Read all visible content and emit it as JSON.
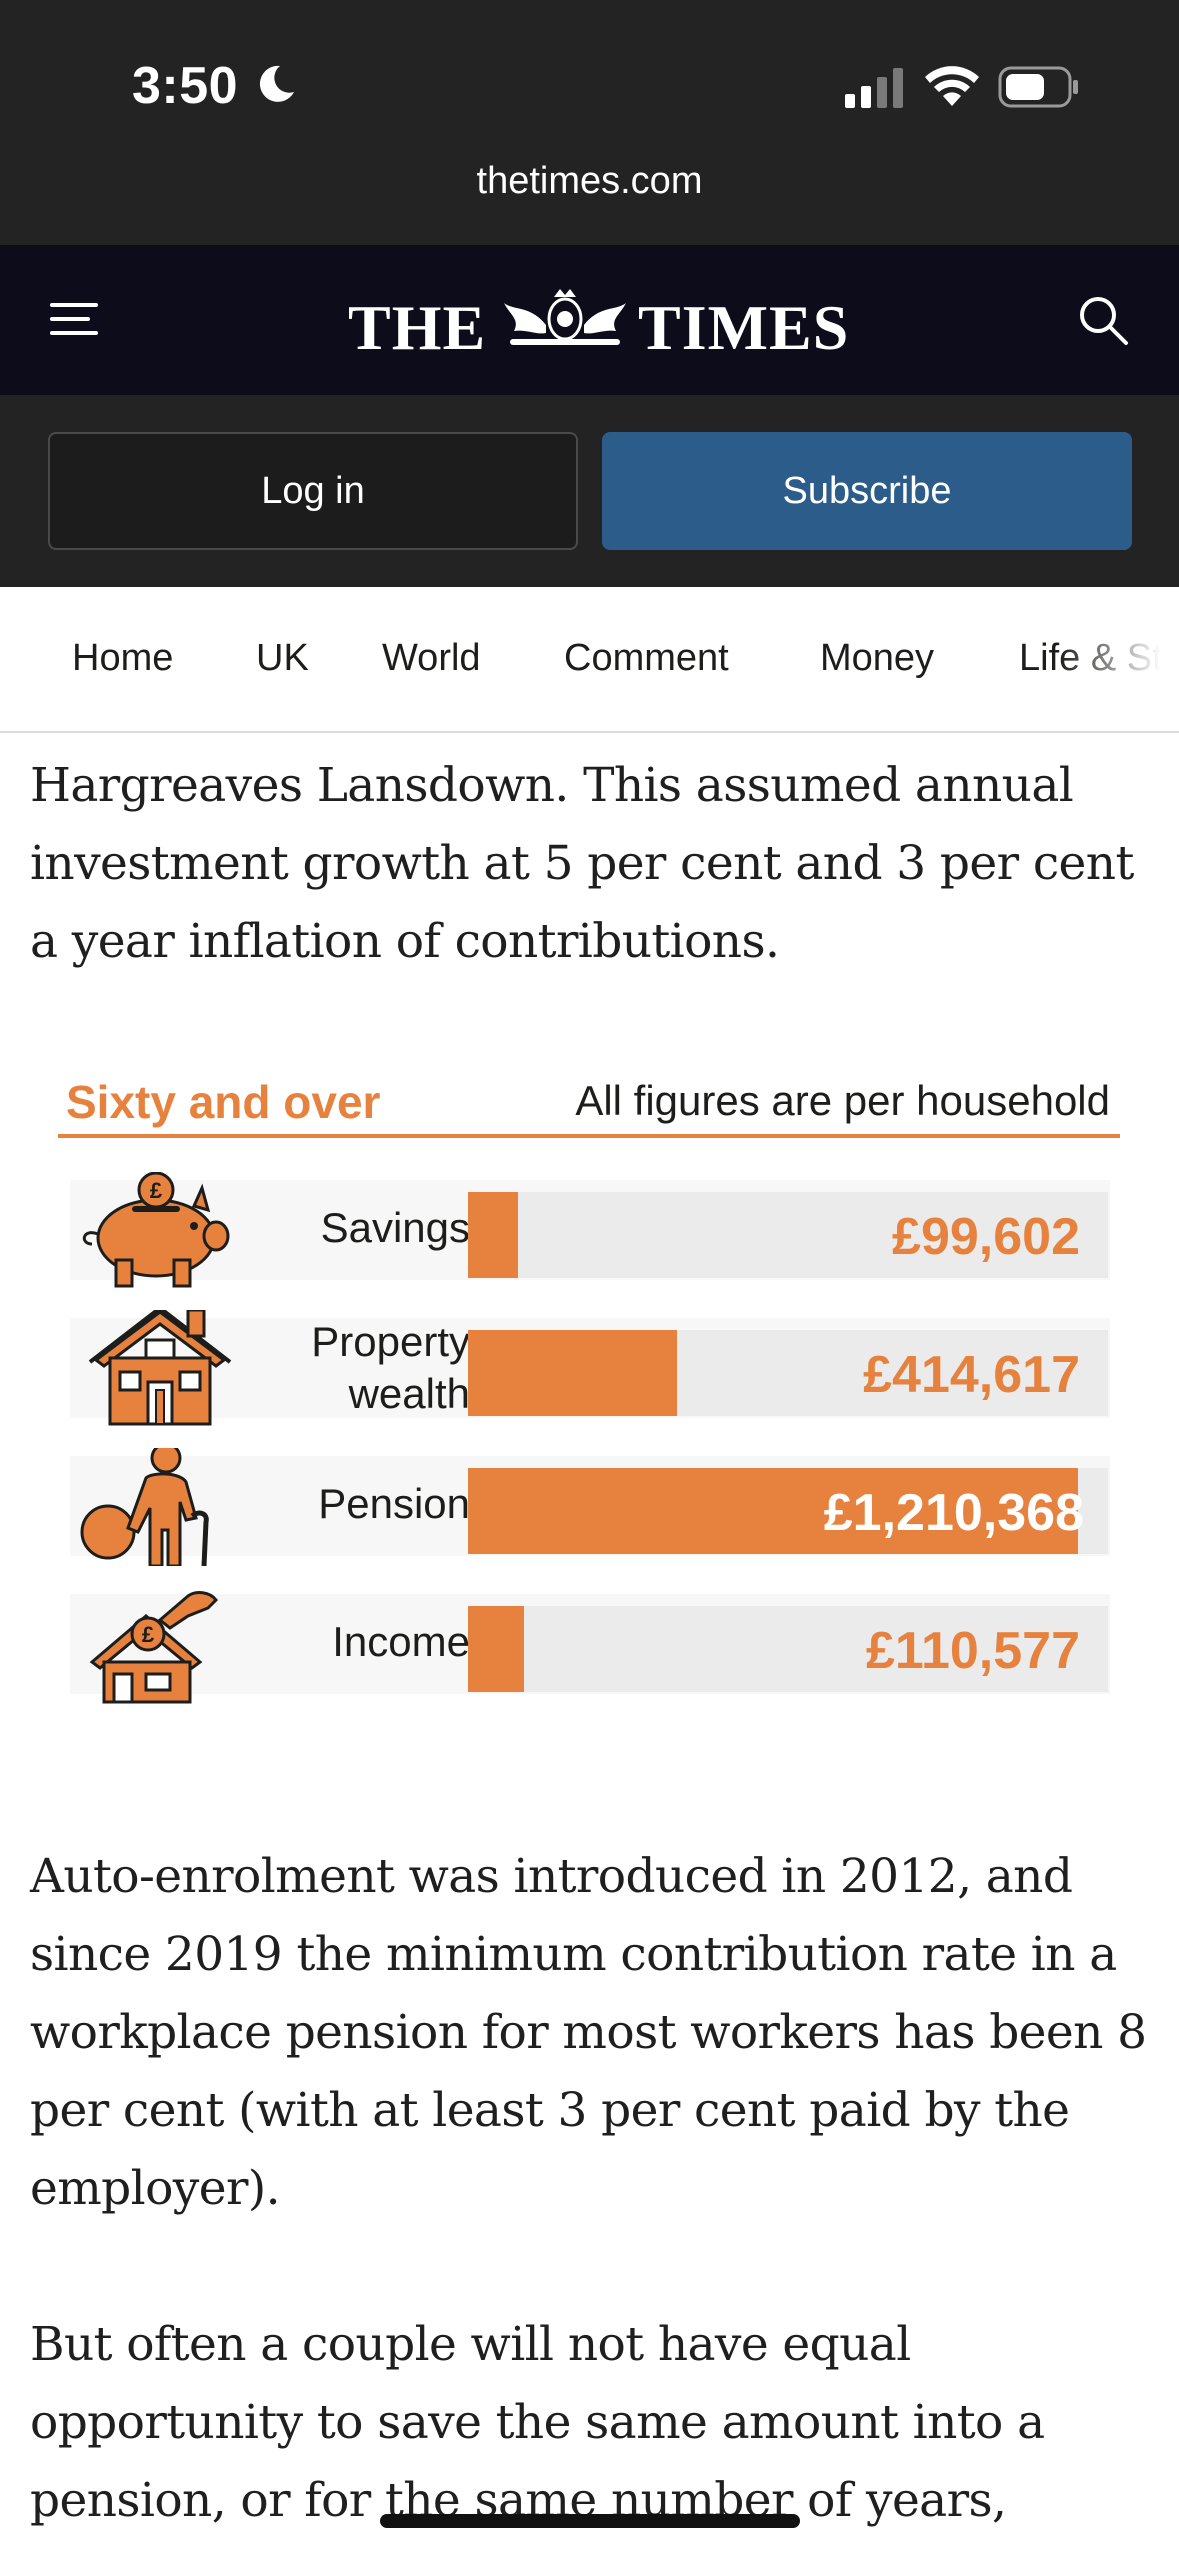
{
  "status_bar": {
    "time": "3:50",
    "url": "thetimes.com"
  },
  "masthead": {
    "logo_left": "THE",
    "logo_right": "TIMES"
  },
  "auth": {
    "login_label": "Log in",
    "subscribe_label": "Subscribe"
  },
  "nav": {
    "items": [
      "Home",
      "UK",
      "World",
      "Comment",
      "Money",
      "Life & St"
    ]
  },
  "article": {
    "para1": "Hargreaves Lansdown. This assumed annual investment growth at 5 per cent and 3 per cent a year inflation of contributions.",
    "para2": "Auto-enrolment was introduced in 2012, and since 2019 the minimum contribution rate in a workplace pension for most workers has been 8 per cent (with at least 3 per cent paid by the employer).",
    "para3": "But often a couple will not have equal opportunity to save the same amount into a pension, or for the same number of years,"
  },
  "chart_data": {
    "type": "bar",
    "title": "Sixty and over",
    "subtitle": "All figures are per household",
    "categories": [
      "Savings",
      "Property wealth",
      "Pension",
      "Income"
    ],
    "values": [
      99602,
      414617,
      1210368,
      110577
    ],
    "value_labels": [
      "£99,602",
      "£414,617",
      "£1,210,368",
      "£110,577"
    ],
    "icons": [
      "piggy-bank-icon",
      "house-icon",
      "elderly-person-icon",
      "house-coin-icon"
    ],
    "xlim": [
      0,
      1270000
    ],
    "color": "#e6823e",
    "grid": false,
    "legend": "none"
  },
  "colors": {
    "accent": "#e6823e",
    "subscribe": "#2b5c8a",
    "masthead": "#0c0c1a",
    "chrome": "#232323"
  }
}
